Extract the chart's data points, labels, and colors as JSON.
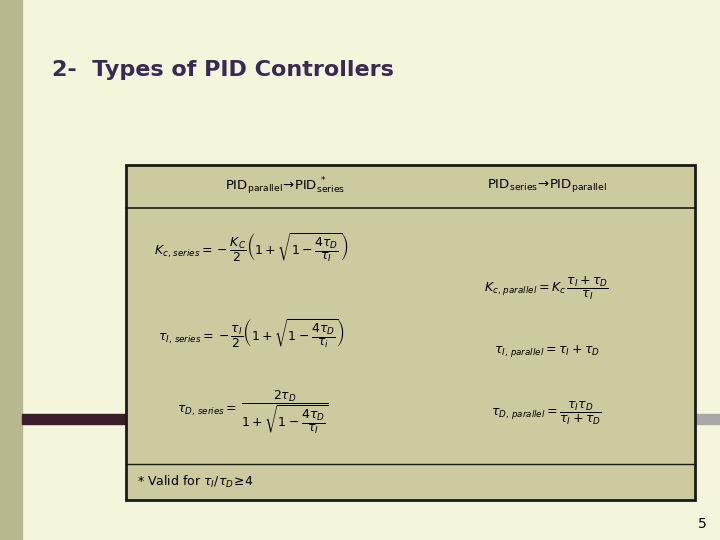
{
  "title": "2-  Types of PID Controllers",
  "title_fontsize": 16,
  "title_color": "#3a2855",
  "background_color": "#f5f5dc",
  "slide_bg": "#f5f5dc",
  "table_bg": "#cccba0",
  "table_border": "#1a1a1a",
  "accent_bar_color": "#3d1c2e",
  "accent_bar_right_color": "#a8a8a8",
  "page_number": "5",
  "left_bar_color": "#b8b890",
  "header_left": "$\\mathrm{PID_{parallel}\\!\\rightarrow\\! PID_{series}^{\\;*}}$",
  "header_right": "$\\mathrm{PID_{series}\\!\\rightarrow\\! PID_{parallel}}$",
  "eq1_left": "$K_{c,\\,series} = -\\dfrac{K_C}{2}\\left(1 + \\sqrt{1 - \\dfrac{4\\tau_D}{\\tau_I}}\\right)$",
  "eq2_left": "$\\tau_{I,\\,series} = -\\dfrac{\\tau_I}{2}\\left(1 + \\sqrt{1 - \\dfrac{4\\tau_D}{\\tau_i}}\\right)$",
  "eq3_left_a": "$\\tau_{D,\\,series} = $",
  "eq3_left_b": "$\\dfrac{2\\tau_D}{1 + \\sqrt{1 - \\dfrac{4\\tau_D}{\\tau_I}}}$",
  "eq1_right": "$K_{c,\\,parallel} = K_c\\,\\dfrac{\\tau_I + \\tau_D}{\\tau_I}$",
  "eq2_right": "$\\tau_{I,\\,parallel} = \\tau_I + \\tau_D$",
  "eq3_right": "$\\tau_{D,\\,parallel} = \\dfrac{\\tau_I\\tau_D}{\\tau_I + \\tau_D}$",
  "footnote": "$*$ Valid for $\\tau_I/\\tau_D\\!\\geq\\!4$"
}
